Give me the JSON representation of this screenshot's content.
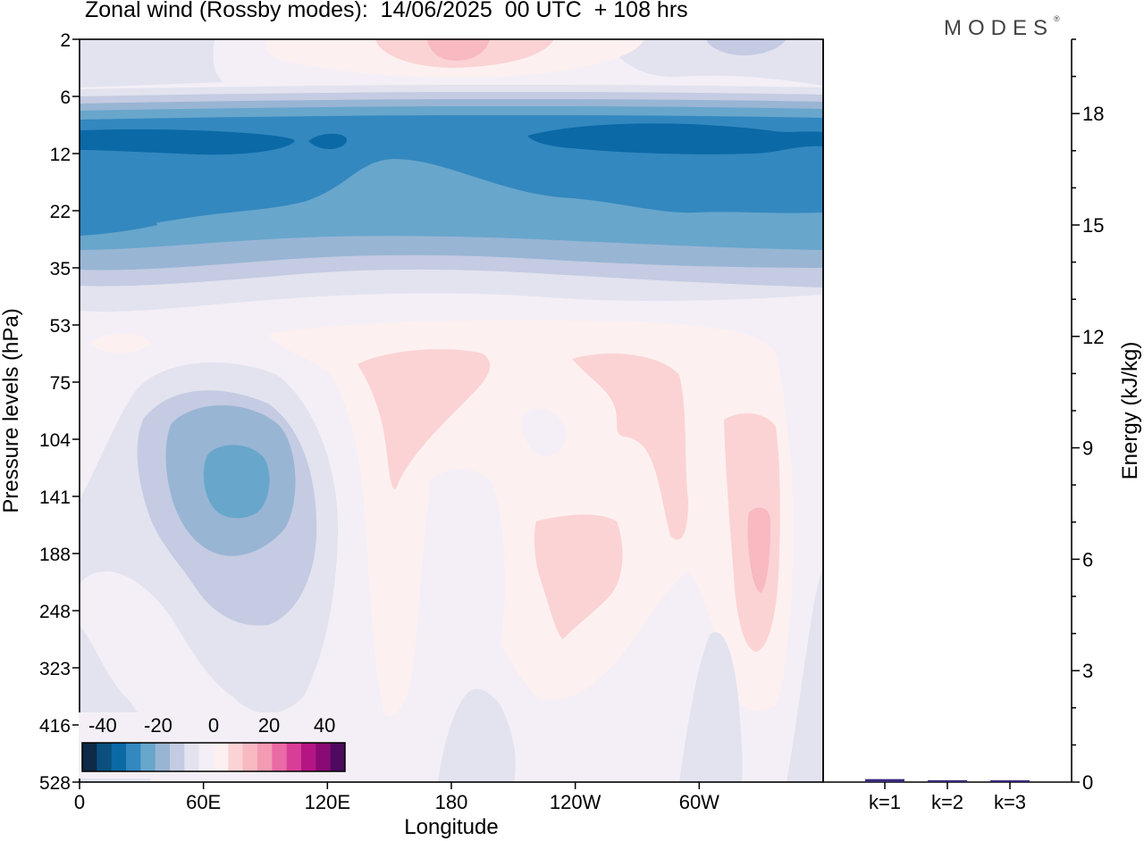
{
  "title": "Zonal wind (Rossby modes):  14/06/2025  00 UTC  + 108 hrs",
  "brand": "MODES",
  "brand_mark": "®",
  "chart_data": [
    {
      "type": "heatmap",
      "xlabel": "Longitude",
      "ylabel": "Pressure levels (hPa)",
      "x_ticks": [
        "0",
        "60E",
        "120E",
        "180",
        "120W",
        "60W"
      ],
      "y_ticks": [
        "2",
        "6",
        "12",
        "22",
        "35",
        "53",
        "75",
        "104",
        "141",
        "188",
        "248",
        "323",
        "416",
        "528"
      ],
      "colorbar": {
        "ticks": [
          "-40",
          "-20",
          "0",
          "20",
          "40"
        ],
        "levels": 18,
        "colors": [
          "#0d2a47",
          "#0a4f7e",
          "#0b69a6",
          "#3388bf",
          "#68a6cc",
          "#99b5d4",
          "#c4cbe2",
          "#e2e3ef",
          "#f4eff6",
          "#fdf0f0",
          "#fbd3d4",
          "#f8b9c1",
          "#f49ab3",
          "#ea6aa5",
          "#d93e97",
          "#b51484",
          "#8a0a73",
          "#4d0a5e"
        ]
      }
    },
    {
      "type": "bar",
      "ylabel": "Energy (kJ/kg)",
      "y_ticks": [
        "0",
        "3",
        "6",
        "9",
        "12",
        "15",
        "18"
      ],
      "ylim": [
        0,
        20
      ],
      "categories": [
        "k=1",
        "k=2",
        "k=3"
      ],
      "values": [
        0.08,
        0.05,
        0.03
      ]
    }
  ]
}
